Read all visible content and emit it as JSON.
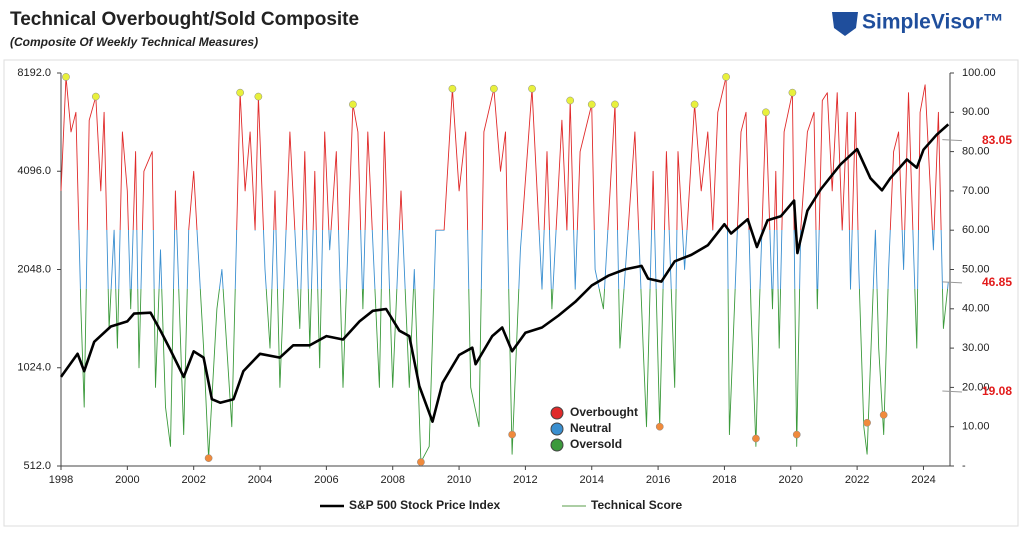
{
  "chart_data": {
    "type": "line",
    "title": "Technical Overbought/Sold Composite",
    "subtitle": "(Composite Of Weekly Technical Measures)",
    "brand": "SimpleVisor™",
    "legend": "bottom",
    "grid": false,
    "ylog": true,
    "xlim": [
      1998,
      2024.8
    ],
    "xticks": [
      1998,
      2000,
      2002,
      2004,
      2006,
      2008,
      2010,
      2012,
      2014,
      2016,
      2018,
      2020,
      2022,
      2024
    ],
    "ylim": [
      512,
      8192
    ],
    "yticks": [
      {
        "value": 512,
        "label": "512.0"
      },
      {
        "value": 1024,
        "label": "1024.0"
      },
      {
        "value": 2048,
        "label": "2048.0"
      },
      {
        "value": 4096,
        "label": "4096.0"
      },
      {
        "value": 8192,
        "label": "8192.0"
      }
    ],
    "y2lim": [
      0,
      100
    ],
    "y2ticks": [
      {
        "value": 0,
        "label": "-"
      },
      {
        "value": 10,
        "label": "10.00"
      },
      {
        "value": 20,
        "label": "20.00"
      },
      {
        "value": 30,
        "label": "30.00"
      },
      {
        "value": 40,
        "label": "40.00"
      },
      {
        "value": 50,
        "label": "50.00"
      },
      {
        "value": 60,
        "label": "60.00"
      },
      {
        "value": 70,
        "label": "70.00"
      },
      {
        "value": 80,
        "label": "80.00"
      },
      {
        "value": 90,
        "label": "90.00"
      },
      {
        "value": 100,
        "label": "100.00"
      }
    ],
    "series": [
      {
        "name": "S&P 500 Stock Price Index",
        "color": "#000000",
        "x": [
          1998.0,
          1998.5,
          1998.7,
          1999.0,
          1999.5,
          2000.0,
          2000.2,
          2000.7,
          2001.0,
          2001.3,
          2001.7,
          2002.0,
          2002.3,
          2002.55,
          2002.8,
          2003.2,
          2003.5,
          2004.0,
          2004.6,
          2005.0,
          2005.5,
          2006.0,
          2006.5,
          2007.0,
          2007.4,
          2007.8,
          2008.2,
          2008.5,
          2008.8,
          2009.2,
          2009.5,
          2010.0,
          2010.4,
          2010.5,
          2011.0,
          2011.3,
          2011.6,
          2012.0,
          2012.5,
          2013.0,
          2013.5,
          2014.0,
          2014.5,
          2015.0,
          2015.5,
          2015.7,
          2016.1,
          2016.5,
          2017.0,
          2017.5,
          2018.0,
          2018.2,
          2018.7,
          2018.98,
          2019.3,
          2019.7,
          2020.1,
          2020.2,
          2020.5,
          2020.9,
          2021.5,
          2022.0,
          2022.4,
          2022.75,
          2023.0,
          2023.5,
          2023.8,
          2024.0,
          2024.4,
          2024.75
        ],
        "values": [
          960,
          1130,
          1000,
          1230,
          1370,
          1420,
          1500,
          1510,
          1330,
          1160,
          960,
          1150,
          1100,
          820,
          800,
          820,
          1000,
          1130,
          1100,
          1200,
          1200,
          1280,
          1250,
          1420,
          1530,
          1550,
          1330,
          1280,
          900,
          700,
          920,
          1120,
          1180,
          1050,
          1280,
          1360,
          1150,
          1310,
          1360,
          1480,
          1630,
          1830,
          1960,
          2050,
          2100,
          1920,
          1880,
          2170,
          2270,
          2430,
          2820,
          2640,
          2920,
          2400,
          2900,
          2980,
          3330,
          2300,
          3100,
          3600,
          4300,
          4790,
          3900,
          3580,
          3900,
          4450,
          4200,
          4770,
          5300,
          5700
        ]
      },
      {
        "name": "Technical Score",
        "color": "#5a9e4a",
        "axis": "y2",
        "x": [
          1998.0,
          1998.15,
          1998.3,
          1998.45,
          1998.6,
          1998.7,
          1998.85,
          1999.05,
          1999.2,
          1999.3,
          1999.45,
          1999.6,
          1999.7,
          1999.85,
          2000.0,
          2000.1,
          2000.25,
          2000.35,
          2000.5,
          2000.75,
          2000.85,
          2001.0,
          2001.15,
          2001.3,
          2001.45,
          2001.7,
          2001.85,
          2002.0,
          2002.3,
          2002.45,
          2002.7,
          2002.85,
          2003.15,
          2003.4,
          2003.55,
          2003.7,
          2003.85,
          2003.95,
          2004.15,
          2004.3,
          2004.45,
          2004.6,
          2004.9,
          2005.2,
          2005.35,
          2005.5,
          2005.65,
          2005.8,
          2005.95,
          2006.1,
          2006.3,
          2006.5,
          2006.8,
          2006.95,
          2007.1,
          2007.25,
          2007.6,
          2007.75,
          2008.0,
          2008.25,
          2008.5,
          2008.65,
          2008.85,
          2009.1,
          2009.3,
          2009.55,
          2009.8,
          2010.0,
          2010.2,
          2010.35,
          2010.6,
          2010.75,
          2011.05,
          2011.25,
          2011.4,
          2011.6,
          2011.85,
          2012.2,
          2012.5,
          2012.65,
          2012.8,
          2013.1,
          2013.25,
          2013.35,
          2013.5,
          2013.65,
          2014.0,
          2014.1,
          2014.35,
          2014.7,
          2014.85,
          2015.3,
          2015.55,
          2015.65,
          2015.85,
          2016.05,
          2016.25,
          2016.5,
          2016.6,
          2016.8,
          2017.1,
          2017.3,
          2017.5,
          2017.65,
          2017.8,
          2018.05,
          2018.15,
          2018.3,
          2018.5,
          2018.65,
          2018.8,
          2018.95,
          2019.05,
          2019.25,
          2019.45,
          2019.55,
          2019.65,
          2019.8,
          2020.05,
          2020.18,
          2020.3,
          2020.5,
          2020.7,
          2020.8,
          2020.95,
          2021.1,
          2021.25,
          2021.4,
          2021.55,
          2021.7,
          2021.8,
          2021.95,
          2022.05,
          2022.2,
          2022.3,
          2022.55,
          2022.65,
          2022.8,
          2022.95,
          2023.1,
          2023.25,
          2023.4,
          2023.55,
          2023.7,
          2023.8,
          2023.9,
          2024.05,
          2024.3,
          2024.45,
          2024.6,
          2024.75
        ],
        "values": [
          70,
          99,
          85,
          90,
          40,
          15,
          88,
          94,
          70,
          90,
          35,
          60,
          30,
          85,
          70,
          40,
          80,
          25,
          75,
          80,
          20,
          55,
          15,
          5,
          70,
          8,
          60,
          75,
          30,
          2,
          40,
          50,
          10,
          95,
          70,
          85,
          60,
          94,
          50,
          30,
          70,
          20,
          85,
          35,
          80,
          30,
          75,
          25,
          85,
          55,
          80,
          20,
          92,
          85,
          40,
          85,
          20,
          85,
          20,
          70,
          20,
          50,
          1,
          5,
          60,
          60,
          96,
          70,
          85,
          20,
          10,
          85,
          96,
          75,
          85,
          3,
          55,
          96,
          45,
          80,
          40,
          88,
          60,
          93,
          45,
          80,
          92,
          50,
          40,
          92,
          30,
          85,
          30,
          10,
          75,
          10,
          80,
          20,
          80,
          50,
          92,
          70,
          85,
          60,
          90,
          99,
          8,
          40,
          85,
          90,
          40,
          5,
          40,
          90,
          40,
          75,
          30,
          85,
          95,
          5,
          60,
          85,
          90,
          40,
          93,
          95,
          70,
          95,
          60,
          90,
          45,
          90,
          50,
          10,
          3,
          60,
          30,
          8,
          50,
          80,
          85,
          50,
          95,
          55,
          30,
          90,
          97,
          55,
          90,
          35,
          46.85
        ]
      }
    ],
    "zones": [
      {
        "name": "Overbought",
        "color": "#e02a2a",
        "from": 60,
        "to": 100
      },
      {
        "name": "Neutral",
        "color": "#3a8fd0",
        "from": 45,
        "to": 60
      },
      {
        "name": "Oversold",
        "color": "#3c9a3c",
        "from": 0,
        "to": 45
      }
    ],
    "overbought_signals": {
      "color": "#e8f03c",
      "x": [
        1998.15,
        1999.05,
        2003.4,
        2003.95,
        2006.8,
        2009.8,
        2011.05,
        2012.2,
        2013.35,
        2014.0,
        2014.7,
        2017.1,
        2018.05,
        2019.25,
        2020.05
      ],
      "values": [
        99,
        94,
        95,
        94,
        92,
        96,
        96,
        96,
        93,
        92,
        92,
        92,
        99,
        90,
        95
      ]
    },
    "oversold_signals": {
      "color": "#f08a3c",
      "x": [
        2002.45,
        2008.85,
        2011.6,
        2016.05,
        2018.95,
        2020.18,
        2022.3,
        2022.8
      ],
      "values": [
        2,
        1,
        8,
        10,
        7,
        8,
        11,
        13
      ]
    },
    "annotations": [
      83.05,
      46.85,
      19.08
    ]
  }
}
